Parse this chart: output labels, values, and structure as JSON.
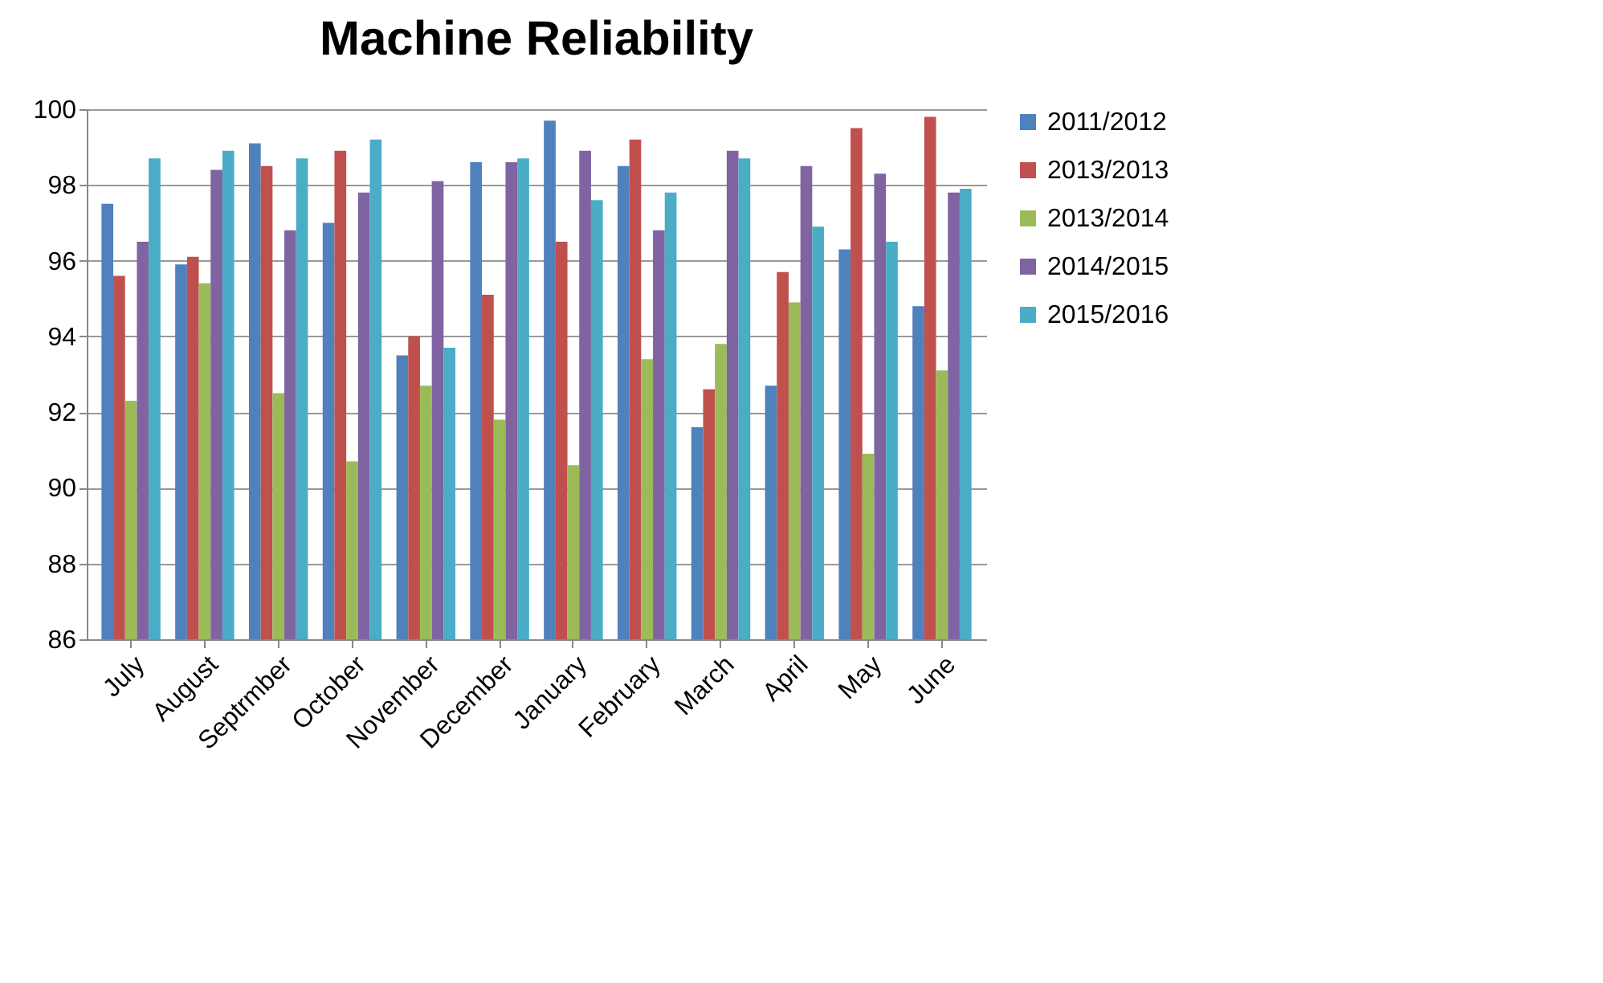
{
  "chart_data": {
    "type": "bar",
    "title": "Machine Reliability",
    "categories": [
      "July",
      "August",
      "Septrmber",
      "October",
      "November",
      "December",
      "January",
      "February",
      "March",
      "April",
      "May",
      "June"
    ],
    "series": [
      {
        "name": "2011/2012",
        "color": "#4f81bd",
        "values": [
          97.5,
          95.9,
          99.1,
          97.0,
          93.5,
          98.6,
          99.7,
          98.5,
          91.6,
          92.7,
          96.3,
          94.8
        ]
      },
      {
        "name": "2013/2013",
        "color": "#c0504d",
        "values": [
          95.6,
          96.1,
          98.5,
          98.9,
          94.0,
          95.1,
          96.5,
          99.2,
          92.6,
          95.7,
          99.5,
          99.8
        ]
      },
      {
        "name": "2013/2014",
        "color": "#9bbb59",
        "values": [
          92.3,
          95.4,
          92.5,
          90.7,
          92.7,
          91.8,
          90.6,
          93.4,
          93.8,
          94.9,
          90.9,
          93.1
        ]
      },
      {
        "name": "2014/2015",
        "color": "#8064a2",
        "values": [
          96.5,
          98.4,
          96.8,
          97.8,
          98.1,
          98.6,
          98.9,
          96.8,
          98.9,
          98.5,
          98.3,
          97.8
        ]
      },
      {
        "name": "2015/2016",
        "color": "#4bacc6",
        "values": [
          98.7,
          98.9,
          98.7,
          99.2,
          93.7,
          98.7,
          97.6,
          97.8,
          98.7,
          96.9,
          96.5,
          97.9
        ]
      }
    ],
    "ylim": [
      86,
      100
    ],
    "yticks": [
      86,
      88,
      90,
      92,
      94,
      96,
      98,
      100
    ],
    "grid": "y",
    "legend": "right"
  }
}
